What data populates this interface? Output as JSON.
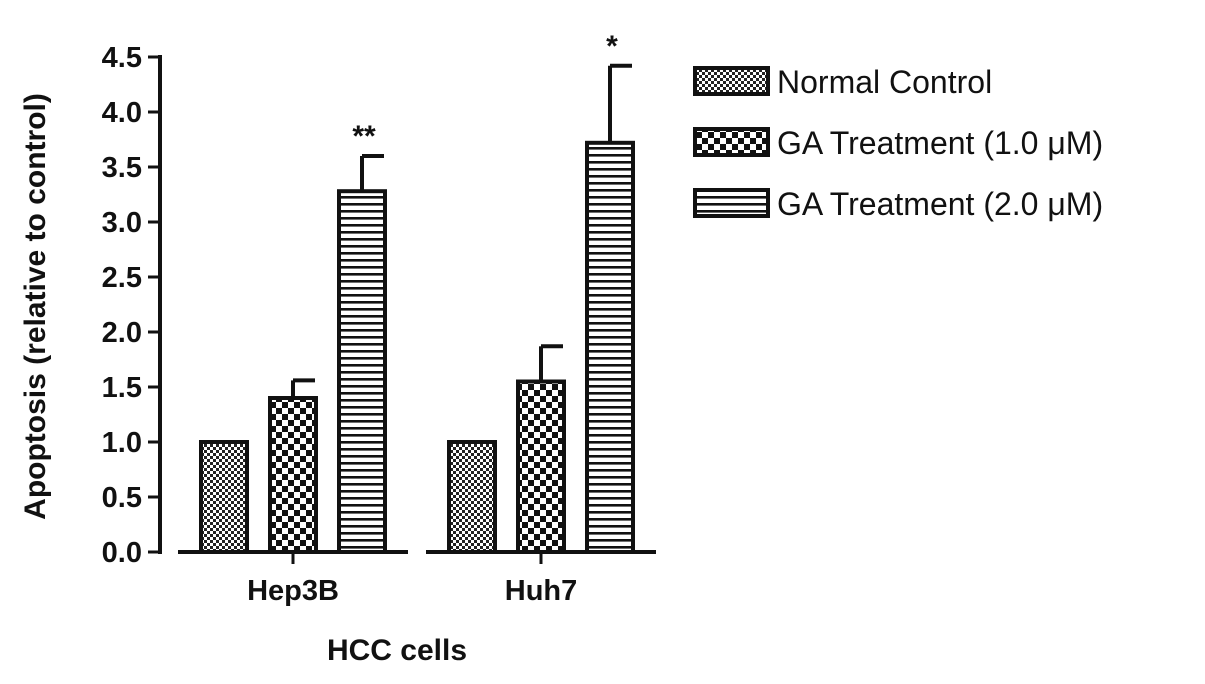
{
  "chart_data": {
    "type": "bar",
    "title": "",
    "xlabel": "HCC cells",
    "ylabel": "Apoptosis (relative to control)",
    "ylim": [
      0,
      4.5
    ],
    "yticks": [
      "0.0",
      "0.5",
      "1.0",
      "1.5",
      "2.0",
      "2.5",
      "3.0",
      "3.5",
      "4.0",
      "4.5"
    ],
    "categories": [
      "Hep3B",
      "Huh7"
    ],
    "series": [
      {
        "name": "Normal Control",
        "pattern": "fine-checker",
        "values": [
          1.0,
          1.0
        ],
        "errors": [
          0,
          0
        ],
        "significance": [
          "",
          ""
        ]
      },
      {
        "name": "GA Treatment (1.0 μM)",
        "pattern": "coarse-checker",
        "values": [
          1.4,
          1.55
        ],
        "errors": [
          0.16,
          0.32
        ],
        "significance": [
          "",
          ""
        ]
      },
      {
        "name": "GA Treatment (2.0 μM)",
        "pattern": "horizontal-stripes",
        "values": [
          3.28,
          3.72
        ],
        "errors": [
          0.32,
          0.7
        ],
        "significance": [
          "**",
          "*"
        ]
      }
    ],
    "legend_position": "right",
    "grid": false,
    "bar_color": "#111111"
  }
}
